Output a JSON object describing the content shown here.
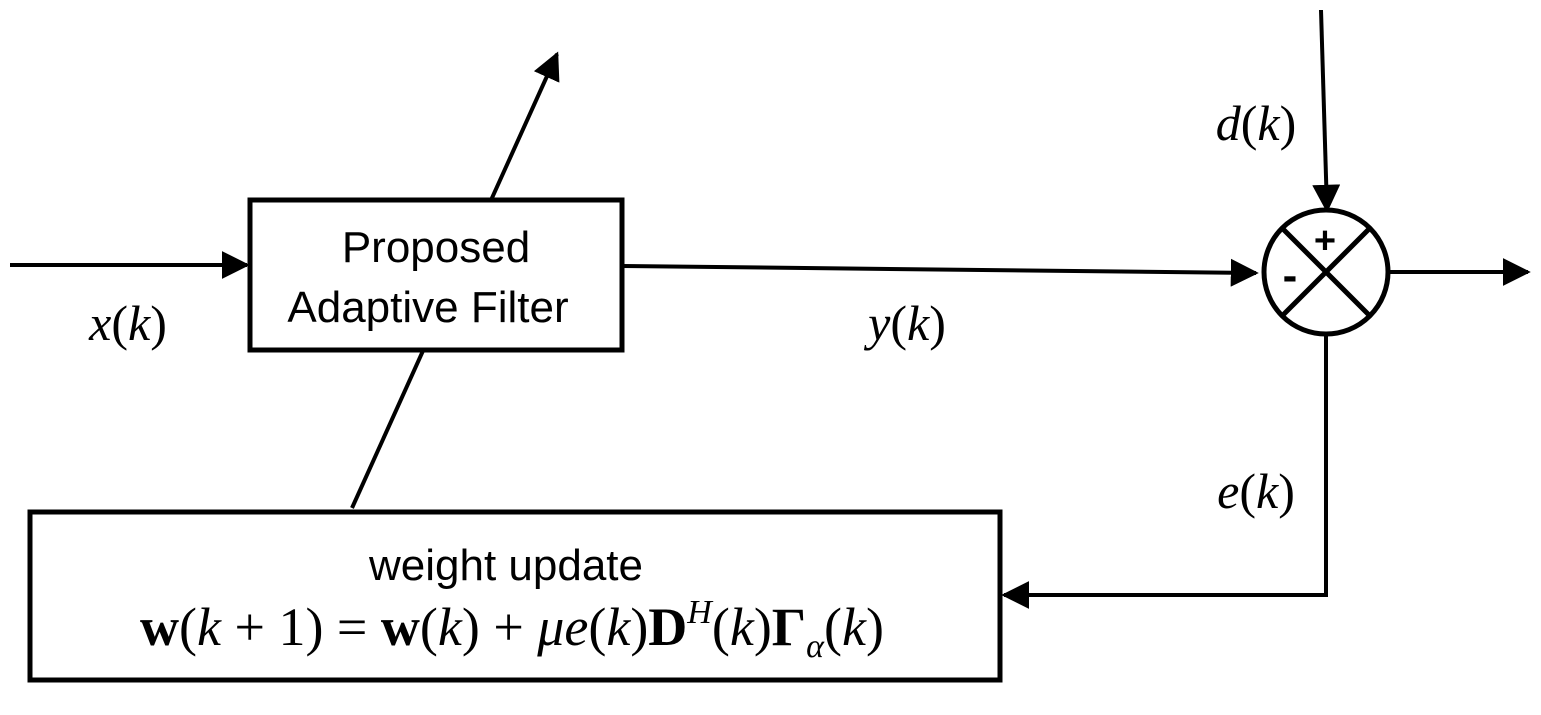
{
  "filter_block": {
    "line1": "Proposed",
    "line2": "Adaptive Filter"
  },
  "update_block": {
    "title": "weight update",
    "eq": {
      "w1": "w",
      "p1": "(",
      "k1": "k",
      "plus1": " + 1) = ",
      "w2": "w",
      "p2": "(",
      "k2": "k",
      "plus2": ") + ",
      "mu": "μ",
      "e": "e",
      "p3": "(",
      "k3": "k",
      "p3c": ")",
      "D": "D",
      "H": "H",
      "p4": "(",
      "k4": "k",
      "p4c": ")",
      "Gamma": "Γ",
      "alpha": "α",
      "p5": "(",
      "k5": "k",
      "p5c": ")"
    }
  },
  "signals": {
    "x": {
      "sym": "x",
      "open": "(",
      "k": "k",
      "close": ")"
    },
    "y": {
      "sym": "y",
      "open": "(",
      "k": "k",
      "close": ")"
    },
    "d": {
      "sym": "d",
      "open": "(",
      "k": "k",
      "close": ")"
    },
    "e": {
      "sym": "e",
      "open": "(",
      "k": "k",
      "close": ")"
    }
  },
  "summer": {
    "plus": "+",
    "minus": "-"
  }
}
